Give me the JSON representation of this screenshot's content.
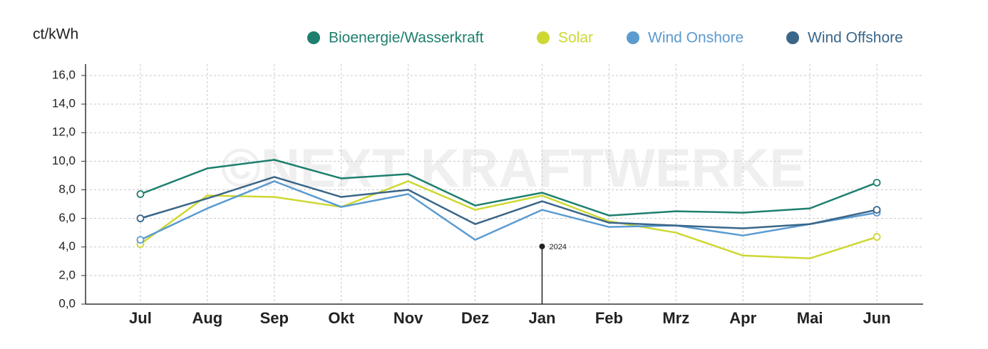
{
  "chart_data": {
    "type": "line",
    "y_label": "ct/kWh",
    "watermark": "©NEXT KRAFTWERKE",
    "annotation": "2024",
    "categories": [
      "Jul",
      "Aug",
      "Sep",
      "Okt",
      "Nov",
      "Dez",
      "Jan",
      "Feb",
      "Mrz",
      "Apr",
      "Mai",
      "Jun"
    ],
    "series": [
      {
        "name": "Bioenergie/Wasserkraft",
        "color": "#1e7f6e",
        "values": [
          7.7,
          9.5,
          10.1,
          8.8,
          9.1,
          6.9,
          7.8,
          6.2,
          6.5,
          6.4,
          6.7,
          8.5
        ]
      },
      {
        "name": "Solar",
        "color": "#cdd832",
        "values": [
          4.2,
          7.6,
          7.5,
          6.8,
          8.6,
          6.6,
          7.6,
          5.8,
          5.0,
          3.4,
          3.2,
          4.7
        ]
      },
      {
        "name": "Wind Onshore",
        "color": "#5b9bd0",
        "values": [
          4.5,
          6.7,
          8.6,
          6.8,
          7.7,
          4.5,
          6.6,
          5.4,
          5.5,
          4.8,
          5.6,
          6.4
        ]
      },
      {
        "name": "Wind Offshore",
        "color": "#3a6689",
        "values": [
          6.0,
          7.4,
          8.9,
          7.5,
          8.0,
          5.6,
          7.2,
          5.7,
          5.5,
          5.3,
          5.6,
          6.6
        ]
      }
    ],
    "ylim": [
      0,
      16
    ],
    "yticks": [
      {
        "value": 0,
        "label": "0,0"
      },
      {
        "value": 2,
        "label": "2,0"
      },
      {
        "value": 4,
        "label": "4,0"
      },
      {
        "value": 6,
        "label": "6,0"
      },
      {
        "value": 8,
        "label": "8,0"
      },
      {
        "value": 10,
        "label": "10,0"
      },
      {
        "value": 12,
        "label": "12,0"
      },
      {
        "value": 14,
        "label": "14,0"
      },
      {
        "value": 16,
        "label": "16,0"
      }
    ],
    "grid": true
  }
}
